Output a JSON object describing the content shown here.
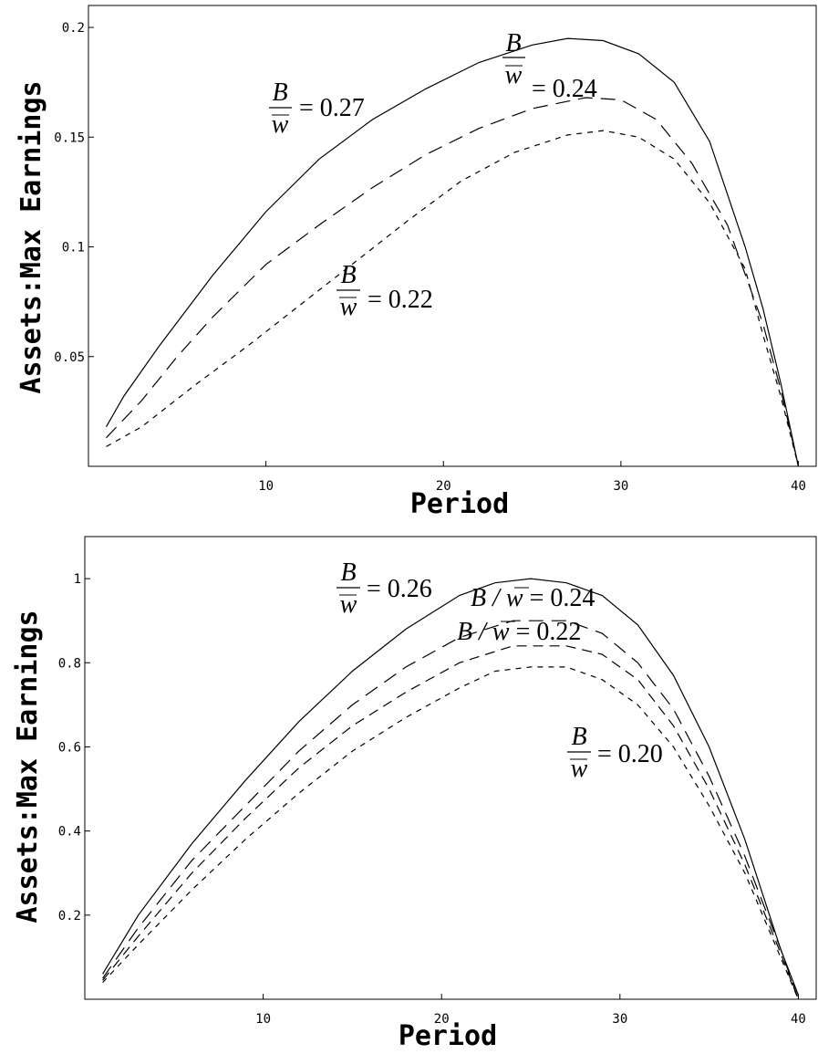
{
  "chart_data": [
    {
      "type": "line",
      "xlabel": "Period",
      "ylabel": "Assets:Max Earnings",
      "xlim": [
        0,
        41
      ],
      "ylim": [
        0,
        0.21
      ],
      "xticks": [
        10,
        20,
        30,
        40
      ],
      "yticks": [
        0.05,
        0.1,
        0.15,
        0.2
      ],
      "xtick_labels": [
        "10",
        "20",
        "30",
        "40"
      ],
      "ytick_labels": [
        "0.05",
        "0.1",
        "0.15",
        "0.2"
      ],
      "grid": false,
      "series": [
        {
          "label_text": "= 0.27",
          "dash": "solid",
          "x": [
            1,
            2,
            4,
            7,
            10,
            13,
            16,
            19,
            22,
            25,
            27,
            29,
            31,
            33,
            35,
            37,
            38,
            39,
            40
          ],
          "y": [
            0.018,
            0.032,
            0.055,
            0.087,
            0.116,
            0.14,
            0.158,
            0.172,
            0.184,
            0.192,
            0.195,
            0.194,
            0.188,
            0.175,
            0.148,
            0.1,
            0.072,
            0.038,
            0.0
          ]
        },
        {
          "label_text": "= 0.24",
          "dash": "long",
          "x": [
            1,
            3,
            5,
            7,
            10,
            13,
            16,
            19,
            22,
            25,
            28,
            30,
            32,
            34,
            36,
            38,
            39,
            40
          ],
          "y": [
            0.013,
            0.03,
            0.05,
            0.068,
            0.092,
            0.11,
            0.127,
            0.142,
            0.154,
            0.163,
            0.168,
            0.167,
            0.158,
            0.138,
            0.11,
            0.065,
            0.035,
            0.0
          ]
        },
        {
          "label_text": "= 0.22",
          "dash": "short",
          "x": [
            1,
            3,
            6,
            9,
            12,
            15,
            18,
            21,
            24,
            27,
            29,
            31,
            33,
            35,
            37,
            38,
            39,
            40
          ],
          "y": [
            0.009,
            0.018,
            0.037,
            0.055,
            0.074,
            0.093,
            0.112,
            0.13,
            0.143,
            0.151,
            0.153,
            0.15,
            0.14,
            0.12,
            0.09,
            0.06,
            0.032,
            0.0
          ]
        }
      ],
      "labels": [
        {
          "numer": "B",
          "denom": "w",
          "text": "= 0.27"
        },
        {
          "numer": "B",
          "denom": "w",
          "text": "= 0.24"
        },
        {
          "numer": "B",
          "denom": "w",
          "text": "= 0.22"
        }
      ]
    },
    {
      "type": "line",
      "xlabel": "Period",
      "ylabel": "Assets:Max Earnings",
      "xlim": [
        0,
        41
      ],
      "ylim": [
        0,
        1.1
      ],
      "xticks": [
        10,
        20,
        30,
        40
      ],
      "yticks": [
        0.2,
        0.4,
        0.6,
        0.8,
        1.0
      ],
      "xtick_labels": [
        "10",
        "20",
        "30",
        "40"
      ],
      "ytick_labels": [
        "0.2",
        "0.4",
        "0.6",
        "0.8",
        "1"
      ],
      "grid": false,
      "series": [
        {
          "label_text": "= 0.26",
          "dash": "solid",
          "x": [
            1,
            3,
            6,
            9,
            12,
            15,
            18,
            21,
            23,
            25,
            27,
            29,
            31,
            33,
            35,
            37,
            38,
            39,
            40
          ],
          "y": [
            0.06,
            0.2,
            0.37,
            0.52,
            0.66,
            0.78,
            0.88,
            0.96,
            0.99,
            1.0,
            0.99,
            0.96,
            0.89,
            0.77,
            0.6,
            0.38,
            0.25,
            0.12,
            0.01
          ]
        },
        {
          "label_text": "B / w = 0.24",
          "dash": "long",
          "x": [
            1,
            3,
            6,
            9,
            12,
            15,
            18,
            21,
            24,
            27,
            29,
            31,
            33,
            35,
            37,
            39,
            40
          ],
          "y": [
            0.05,
            0.17,
            0.33,
            0.46,
            0.59,
            0.7,
            0.79,
            0.86,
            0.9,
            0.9,
            0.87,
            0.8,
            0.69,
            0.53,
            0.34,
            0.12,
            0.0
          ]
        },
        {
          "label_text": "B / w = 0.22",
          "dash": "medium",
          "x": [
            1,
            3,
            6,
            9,
            12,
            15,
            18,
            21,
            24,
            27,
            29,
            31,
            33,
            35,
            37,
            39,
            40
          ],
          "y": [
            0.045,
            0.15,
            0.3,
            0.43,
            0.55,
            0.65,
            0.73,
            0.8,
            0.84,
            0.84,
            0.82,
            0.76,
            0.65,
            0.5,
            0.32,
            0.11,
            0.0
          ]
        },
        {
          "label_text": "= 0.20",
          "dash": "short",
          "x": [
            1,
            3,
            6,
            9,
            12,
            15,
            18,
            21,
            23,
            25,
            27,
            29,
            31,
            33,
            35,
            37,
            39,
            40
          ],
          "y": [
            0.04,
            0.13,
            0.26,
            0.38,
            0.49,
            0.59,
            0.67,
            0.74,
            0.78,
            0.79,
            0.79,
            0.76,
            0.7,
            0.6,
            0.46,
            0.3,
            0.1,
            0.0
          ]
        }
      ],
      "labels": [
        {
          "numer": "B",
          "denom": "w",
          "text": "= 0.26"
        },
        {
          "pre": "B / ",
          "over": "w",
          "text": " = 0.24"
        },
        {
          "pre": "B / ",
          "over": "w",
          "text": " = 0.22"
        },
        {
          "numer": "B",
          "denom": "w",
          "text": "= 0.20"
        }
      ]
    }
  ]
}
